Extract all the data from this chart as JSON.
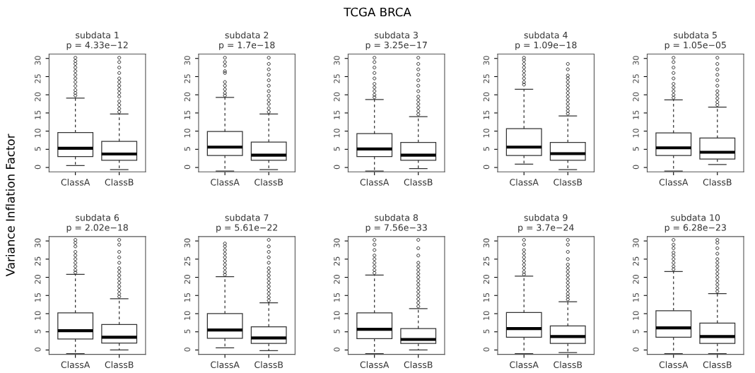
{
  "chart_data": [
    {
      "type": "box",
      "title": "subdata 1\np = 4.33e−12",
      "ylabel": "Variance Inflation Factor",
      "annotations": [
        "TCGA BRCA"
      ],
      "categories": [
        "ClassA",
        "ClassB"
      ],
      "ylim": [
        -1.2,
        31.2
      ],
      "yticks": [
        0,
        5,
        10,
        15,
        20,
        25,
        30
      ],
      "grid": false,
      "boxes": [
        {
          "low": 0.5,
          "q1": 3,
          "median": 5.3,
          "q3": 9.6,
          "high": 19.1,
          "outliers": [
            19.8,
            20.5,
            21.3,
            22.4,
            23.5,
            24.5,
            25.5,
            26.5,
            27.5,
            28.5,
            29.3,
            30.2
          ]
        },
        {
          "low": -0.6,
          "q1": 2,
          "median": 3.7,
          "q3": 7.2,
          "high": 14.7,
          "outliers": [
            15.3,
            16.2,
            17.2,
            18.2,
            19.5,
            20.5,
            21.5,
            22.5,
            23.5,
            24.5,
            26,
            27.5,
            29,
            30.2
          ]
        }
      ]
    },
    {
      "type": "box",
      "title": "subdata 2\np = 1.7e−18",
      "categories": [
        "ClassA",
        "ClassB"
      ],
      "ylim": [
        -1.2,
        31.2
      ],
      "yticks": [
        0,
        5,
        10,
        15,
        20,
        25,
        30
      ],
      "grid": false,
      "boxes": [
        {
          "low": -1.0,
          "q1": 3.3,
          "median": 5.6,
          "q3": 9.9,
          "high": 19.3,
          "outliers": [
            19.8,
            20.5,
            21.5,
            22.5,
            23.5,
            26,
            26.5,
            28,
            29,
            30.2
          ]
        },
        {
          "low": -0.6,
          "q1": 2,
          "median": 3.4,
          "q3": 7.0,
          "high": 14.7,
          "outliers": [
            15.3,
            16.3,
            17.5,
            18.5,
            19.7,
            21,
            22.5,
            24,
            25.5,
            27,
            28.5,
            30.2
          ]
        }
      ]
    },
    {
      "type": "box",
      "title": "subdata 3\np = 3.25e−17",
      "categories": [
        "ClassA",
        "ClassB"
      ],
      "ylim": [
        -1.2,
        31.2
      ],
      "yticks": [
        0,
        5,
        10,
        15,
        20,
        25,
        30
      ],
      "grid": false,
      "boxes": [
        {
          "low": -1.0,
          "q1": 3,
          "median": 5.1,
          "q3": 9.3,
          "high": 18.7,
          "outliers": [
            19.3,
            20,
            21,
            22,
            23,
            24.5,
            26,
            27.5,
            29,
            30.2
          ]
        },
        {
          "low": -0.3,
          "q1": 2,
          "median": 3.4,
          "q3": 6.9,
          "high": 14.0,
          "outliers": [
            14.6,
            15.5,
            16.5,
            17.5,
            18.5,
            19.5,
            21,
            22.5,
            24,
            25.5,
            27,
            28.5,
            30.2
          ]
        }
      ]
    },
    {
      "type": "box",
      "title": "subdata 4\np = 1.09e−18",
      "categories": [
        "ClassA",
        "ClassB"
      ],
      "ylim": [
        -1.2,
        31.2
      ],
      "yticks": [
        0,
        5,
        10,
        15,
        20,
        25,
        30
      ],
      "grid": false,
      "boxes": [
        {
          "low": 0.9,
          "q1": 3.3,
          "median": 5.6,
          "q3": 10.7,
          "high": 21.5,
          "outliers": [
            22.8,
            23.5,
            24.5,
            25.5,
            26.5,
            27.5,
            28.5,
            29.5,
            30.2
          ]
        },
        {
          "low": -0.6,
          "q1": 2,
          "median": 3.8,
          "q3": 6.9,
          "high": 14.2,
          "outliers": [
            14.8,
            15.6,
            16.5,
            17.5,
            18.5,
            19.5,
            20.5,
            21.5,
            22.5,
            23.5,
            24.5,
            25.3,
            27,
            28.5
          ]
        }
      ]
    },
    {
      "type": "box",
      "title": "subdata 5\np = 1.05e−05",
      "categories": [
        "ClassA",
        "ClassB"
      ],
      "ylim": [
        -1.2,
        31.2
      ],
      "yticks": [
        0,
        5,
        10,
        15,
        20,
        25,
        30
      ],
      "grid": false,
      "boxes": [
        {
          "low": -1.0,
          "q1": 3.3,
          "median": 5.4,
          "q3": 9.5,
          "high": 18.6,
          "outliers": [
            19.2,
            20,
            21,
            22,
            23,
            24.5,
            26,
            27.5,
            29,
            30.2
          ]
        },
        {
          "low": 0.8,
          "q1": 2.3,
          "median": 4.2,
          "q3": 8.1,
          "high": 16.6,
          "outliers": [
            17.2,
            18,
            19,
            20,
            21,
            22.5,
            24,
            25.5,
            27,
            28.5,
            30.2
          ]
        }
      ]
    },
    {
      "type": "box",
      "title": "subdata 6\np = 2.02e−18",
      "categories": [
        "ClassA",
        "ClassB"
      ],
      "ylim": [
        -1.2,
        31.2
      ],
      "yticks": [
        0,
        5,
        10,
        15,
        20,
        25,
        30
      ],
      "grid": false,
      "boxes": [
        {
          "low": -1.0,
          "q1": 3,
          "median": 5.3,
          "q3": 10.2,
          "high": 20.8,
          "outliers": [
            21.3,
            22,
            23,
            24,
            25,
            26,
            27,
            28.5,
            29.5,
            30.3
          ]
        },
        {
          "low": 0,
          "q1": 1.9,
          "median": 3.5,
          "q3": 7.0,
          "high": 14.1,
          "outliers": [
            14.7,
            15.5,
            16.5,
            17.5,
            18.5,
            19.5,
            20.5,
            21.5,
            22.5,
            24,
            25.5,
            27,
            29,
            30.3
          ]
        }
      ]
    },
    {
      "type": "box",
      "title": "subdata 7\np = 5.61e−22",
      "categories": [
        "ClassA",
        "ClassB"
      ],
      "ylim": [
        -1.2,
        31.2
      ],
      "yticks": [
        0,
        5,
        10,
        15,
        20,
        25,
        30
      ],
      "grid": false,
      "boxes": [
        {
          "low": 0.6,
          "q1": 3.2,
          "median": 5.5,
          "q3": 10.0,
          "high": 20.2,
          "outliers": [
            20.7,
            21.5,
            22.5,
            23.5,
            24.5,
            25.5,
            26.5,
            27.5,
            28.5,
            29.3
          ]
        },
        {
          "low": -0.2,
          "q1": 1.8,
          "median": 3.3,
          "q3": 6.4,
          "high": 13.0,
          "outliers": [
            13.6,
            14.5,
            15.5,
            16.5,
            17.5,
            18.5,
            19.5,
            20.5,
            21.5,
            22.5,
            24,
            25.5,
            27,
            28.5,
            30.3
          ]
        }
      ]
    },
    {
      "type": "box",
      "title": "subdata 8\np = 7.56e−33",
      "categories": [
        "ClassA",
        "ClassB"
      ],
      "ylim": [
        -1.2,
        31.2
      ],
      "yticks": [
        0,
        5,
        10,
        15,
        20,
        25,
        30
      ],
      "grid": false,
      "boxes": [
        {
          "low": -1.0,
          "q1": 3.1,
          "median": 5.7,
          "q3": 10.2,
          "high": 20.6,
          "outliers": [
            21.2,
            22,
            23,
            24,
            25,
            26,
            27.5,
            29,
            30.3
          ]
        },
        {
          "low": 0,
          "q1": 1.8,
          "median": 2.9,
          "q3": 5.9,
          "high": 11.4,
          "outliers": [
            12,
            13,
            14,
            15,
            16,
            17,
            18,
            19,
            20,
            21,
            22,
            23,
            24,
            26,
            28,
            30.3
          ]
        }
      ]
    },
    {
      "type": "box",
      "title": "subdata 9\np = 3.7e−24",
      "categories": [
        "ClassA",
        "ClassB"
      ],
      "ylim": [
        -1.2,
        31.2
      ],
      "yticks": [
        0,
        5,
        10,
        15,
        20,
        25,
        30
      ],
      "grid": false,
      "boxes": [
        {
          "low": -1.0,
          "q1": 3.5,
          "median": 5.9,
          "q3": 10.3,
          "high": 20.3,
          "outliers": [
            20.8,
            21.5,
            22.5,
            23.5,
            24.5,
            25.5,
            26.5,
            27.5,
            29,
            30.3
          ]
        },
        {
          "low": -0.7,
          "q1": 1.8,
          "median": 3.7,
          "q3": 6.6,
          "high": 13.3,
          "outliers": [
            13.9,
            14.7,
            15.5,
            16.5,
            17.5,
            18.5,
            19.5,
            20.5,
            21.5,
            22.5,
            23.5,
            25,
            27,
            29,
            30.3
          ]
        }
      ]
    },
    {
      "type": "box",
      "title": "subdata 10\np = 6.28e−23",
      "categories": [
        "ClassA",
        "ClassB"
      ],
      "ylim": [
        -1.2,
        31.2
      ],
      "yticks": [
        0,
        5,
        10,
        15,
        20,
        25,
        30
      ],
      "grid": false,
      "boxes": [
        {
          "low": -1.0,
          "q1": 3.5,
          "median": 6.1,
          "q3": 10.8,
          "high": 21.6,
          "outliers": [
            22.2,
            23,
            24,
            25,
            26,
            26.8,
            28,
            29,
            30.3
          ]
        },
        {
          "low": -1.0,
          "q1": 1.8,
          "median": 3.7,
          "q3": 7.4,
          "high": 15.5,
          "outliers": [
            16.1,
            17,
            18,
            19,
            20,
            21,
            22,
            23,
            24,
            25,
            26.5,
            28,
            29.5,
            30.3
          ]
        }
      ]
    }
  ]
}
